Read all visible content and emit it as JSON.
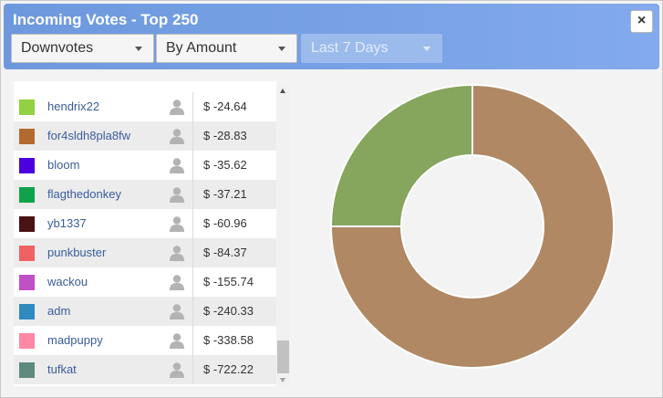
{
  "window": {
    "title": "Incoming Votes - Top 250",
    "close_label": "×"
  },
  "filters": {
    "vote_type": "Downvotes",
    "sort": "By Amount",
    "period": "Last 7 Days"
  },
  "rows": [
    {
      "name": "hendrix22",
      "amount": "$ -24.64",
      "color": "#91d144"
    },
    {
      "name": "for4sldh8pla8fw",
      "amount": "$ -28.83",
      "color": "#b46a2f"
    },
    {
      "name": "bloom",
      "amount": "$ -35.62",
      "color": "#4c00e0"
    },
    {
      "name": "flagthedonkey",
      "amount": "$ -37.21",
      "color": "#0fa24a"
    },
    {
      "name": "yb1337",
      "amount": "$ -60.96",
      "color": "#4a1313"
    },
    {
      "name": "punkbuster",
      "amount": "$ -84.37",
      "color": "#f06262"
    },
    {
      "name": "wackou",
      "amount": "$ -155.74",
      "color": "#c050c8"
    },
    {
      "name": "adm",
      "amount": "$ -240.33",
      "color": "#2e8bbe"
    },
    {
      "name": "madpuppy",
      "amount": "$ -338.58",
      "color": "#ff88a4"
    },
    {
      "name": "tufkat",
      "amount": "$ -722.22",
      "color": "#5e8a7e"
    }
  ],
  "chart_data": {
    "type": "pie",
    "style": "donut",
    "series": [
      {
        "color": "#b08863",
        "fraction": 0.75
      },
      {
        "color": "#86a55d",
        "fraction": 0.25
      }
    ]
  }
}
